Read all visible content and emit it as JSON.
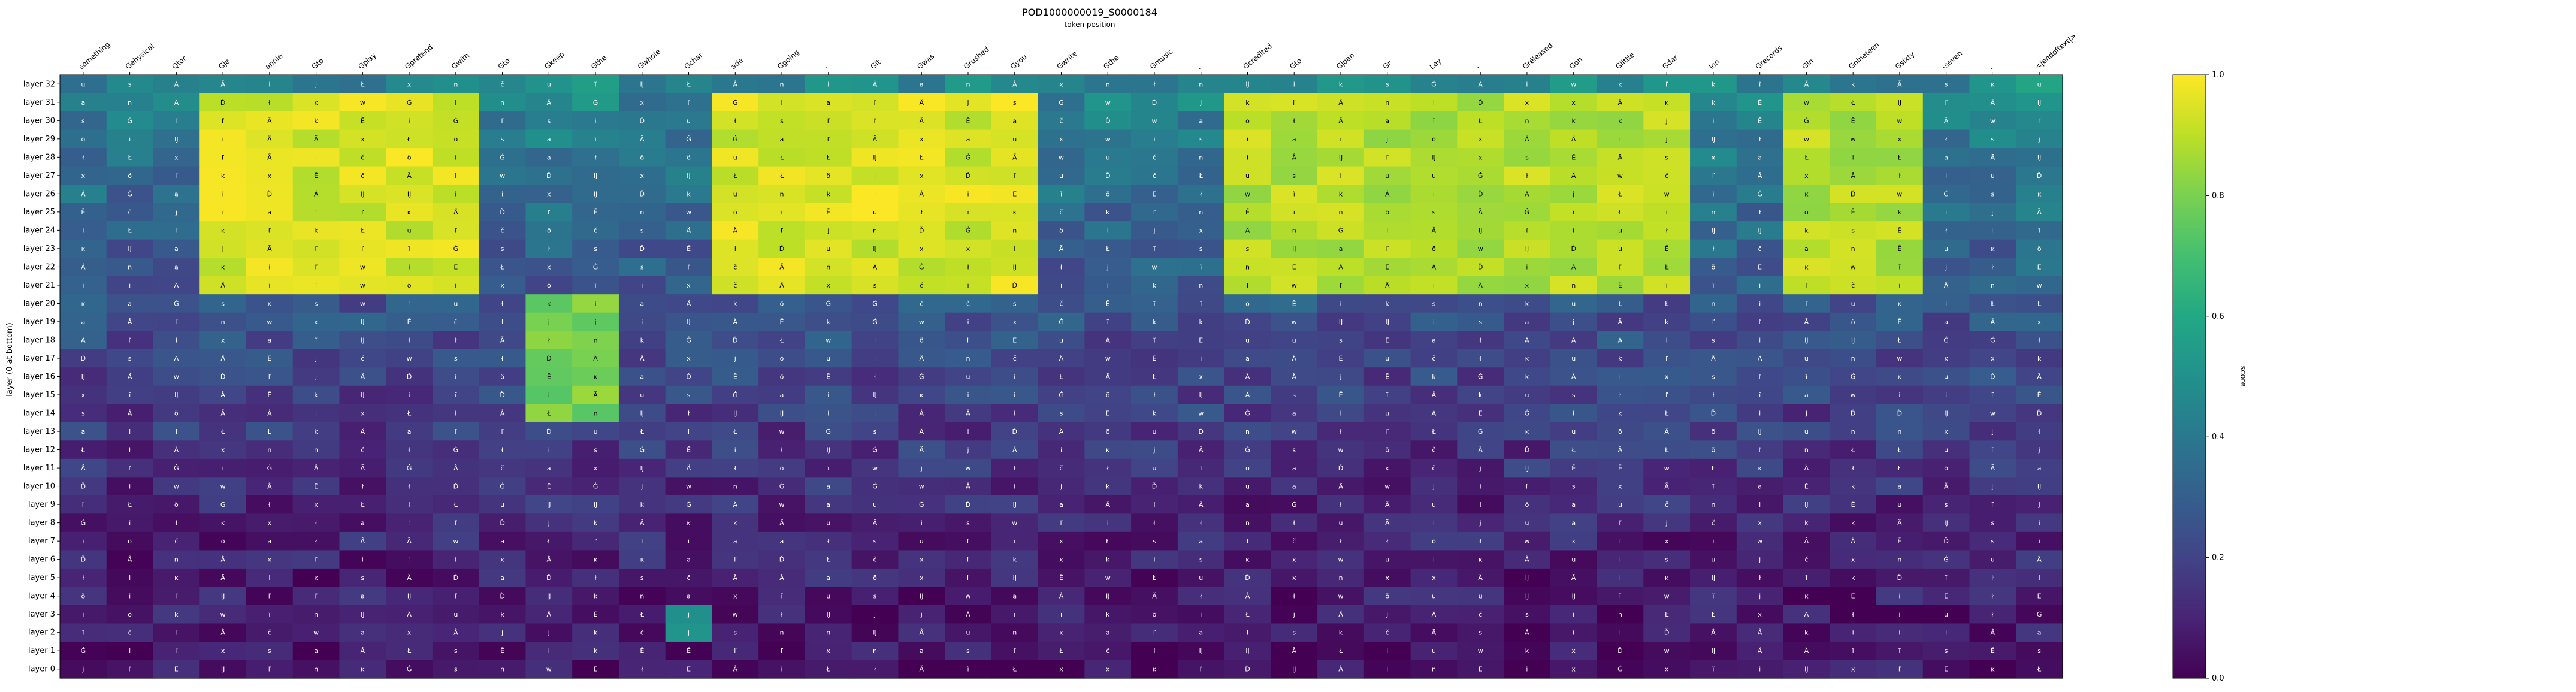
{
  "chart_data": {
    "type": "heatmap",
    "title": "POD1000000019_S0000184",
    "subtitle": "token position",
    "xlabel": "token position",
    "ylabel": "layer (0 at bottom)",
    "colorbar_label": "score",
    "colorbar_ticks": [
      "0.0",
      "0.2",
      "0.4",
      "0.6",
      "0.8",
      "1.0"
    ],
    "vmin": 0.0,
    "vmax": 1.0,
    "colormap": "viridis",
    "tokens": [
      "something",
      "Gehysical",
      "Qtor",
      "Gje",
      "annie",
      "Gto",
      "Gplay",
      "Gpretend",
      "Gwith",
      "Gto",
      "Gkeep",
      "Gthe",
      "Gwhole",
      "Gchar",
      "ade",
      "Ggoing",
      "-",
      "Git",
      "Gwas",
      "Grushed",
      "Gyou",
      "Gwrite",
      "Gthe",
      "Gmusic",
      ".",
      "Gcredited",
      "Gto",
      "Gjoan",
      "Gr",
      "Ley",
      "-",
      "Gréleased",
      "Gon",
      "Glittle",
      "Gdar",
      "Ion",
      "Grecords",
      "Gin",
      "Gnineteen",
      "Gsixty",
      "-seven",
      ".",
      "<|endoftext|>"
    ],
    "layers": [
      "layer 32",
      "layer 31",
      "layer 30",
      "layer 29",
      "layer 28",
      "layer 27",
      "layer 26",
      "layer 25",
      "layer 24",
      "layer 23",
      "layer 22",
      "layer 21",
      "layer 20",
      "layer 19",
      "layer 18",
      "layer 17",
      "layer 16",
      "layer 15",
      "layer 14",
      "layer 13",
      "layer 12",
      "layer 11",
      "layer 10",
      "layer 9",
      "layer 8",
      "layer 7",
      "layer 6",
      "layer 5",
      "layer 4",
      "layer 3",
      "layer 2",
      "layer 1",
      "layer 0"
    ],
    "cell_glyphs": [
      "a",
      "Ã",
      "Ä",
      "Ġ",
      "Â",
      "ĩ",
      "ł",
      "ľ",
      "i",
      "Ĳ",
      "ĸ",
      "ö",
      "Ł",
      "Ď",
      "u",
      "w",
      "k",
      "s",
      "č",
      "n",
      "i",
      "j",
      "Ē",
      "x"
    ],
    "top_layer_scores": [
      0.45,
      0.42,
      0.43,
      0.45,
      0.47,
      0.45,
      0.44,
      0.45,
      0.45,
      0.46,
      0.47,
      0.48,
      0.45,
      0.44,
      0.45,
      0.45,
      0.47,
      0.46,
      0.48,
      0.46,
      0.49,
      0.45,
      0.46,
      0.45,
      0.47,
      0.45,
      0.46,
      0.45,
      0.46,
      0.44,
      0.45,
      0.46,
      0.47,
      0.46,
      0.45,
      0.48,
      0.47,
      0.46,
      0.45,
      0.46,
      0.45,
      0.46,
      0.5
    ],
    "bottom_layer_scores": [
      0.05,
      0.05,
      0.06,
      0.05,
      0.05,
      0.05,
      0.06,
      0.06,
      0.05,
      0.05,
      0.06,
      0.05,
      0.06,
      0.05,
      0.05,
      0.05,
      0.06,
      0.05,
      0.05,
      0.05,
      0.06,
      0.05,
      0.05,
      0.05,
      0.06,
      0.05,
      0.05,
      0.06,
      0.05,
      0.05,
      0.05,
      0.05,
      0.06,
      0.05,
      0.05,
      0.05,
      0.06,
      0.05,
      0.05,
      0.06,
      0.05,
      0.05,
      0.06
    ],
    "high_score_regions": [
      {
        "layers": "layer 21 – layer 31",
        "tokens": "Gje – Gwith",
        "value": 1.0
      },
      {
        "layers": "layer 21 – layer 31",
        "tokens": "ade – Gyou",
        "value": 1.0
      },
      {
        "layers": "layer 21 – layer 31",
        "tokens": "Gcredited – Gdar",
        "value": 0.95
      },
      {
        "layers": "layer 21 – layer 31",
        "tokens": "Gin – Gsixty",
        "value": 0.95
      },
      {
        "layers": "layer 14 – layer 20",
        "tokens": "Gkeep – Gthe",
        "value": 0.85
      },
      {
        "layers": "layer 2 – layer 3",
        "tokens": "Gchar",
        "value": 0.6
      }
    ]
  }
}
